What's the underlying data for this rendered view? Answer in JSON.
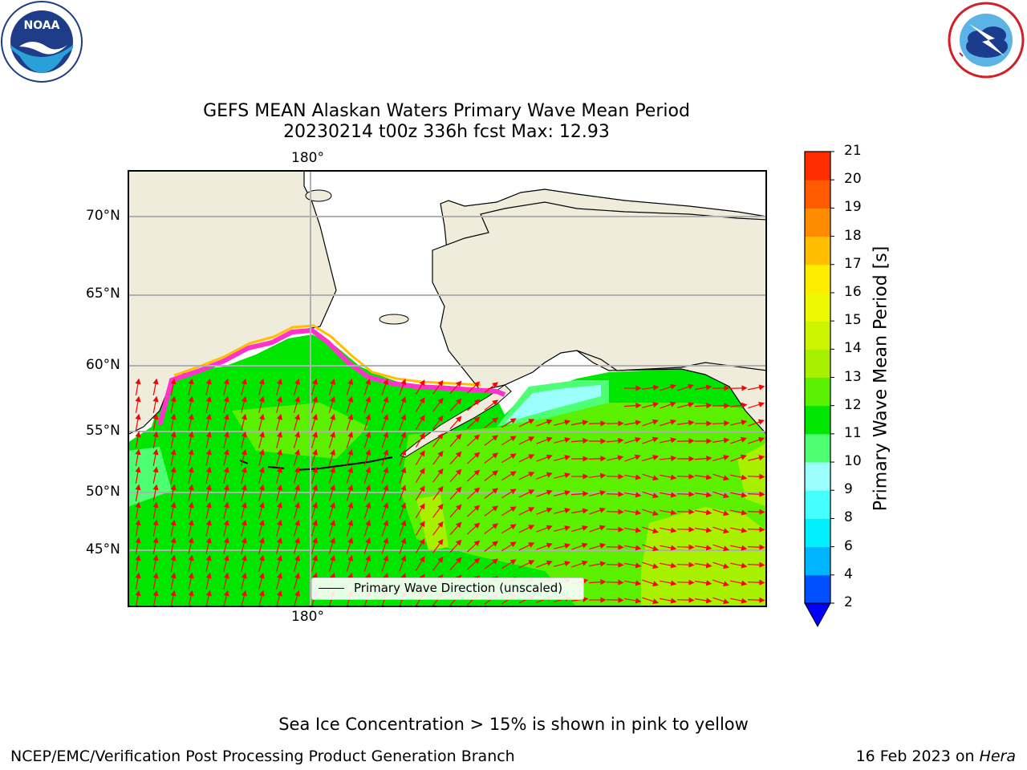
{
  "title": {
    "line1": "GEFS MEAN Alaskan Waters Primary Wave Mean Period",
    "line2": "20230214 t00z 336h fcst   Max: 12.93"
  },
  "logos": {
    "noaa_text": "NOAA",
    "noaa_ring": "NATIONAL OCEANIC AND ATMOSPHERIC ADMINISTRATION · U.S. DEPARTMENT OF COMMERCE",
    "nws_ring": "NATIONAL WEATHER SERVICE"
  },
  "map": {
    "lon_label_top": "180°",
    "lon_label_bottom": "180°",
    "lat_labels": [
      "70°N",
      "65°N",
      "60°N",
      "55°N",
      "50°N",
      "45°N"
    ],
    "legend_text": "Primary Wave Direction (unscaled)"
  },
  "colorbar": {
    "title": "Primary Wave Mean Period [s]",
    "levels": [
      "2",
      "4",
      "6",
      "8",
      "9",
      "10",
      "11",
      "12",
      "13",
      "14",
      "15",
      "16",
      "17",
      "18",
      "19",
      "20",
      "21"
    ],
    "colors": [
      "#0050ff",
      "#00b4ff",
      "#00f0ff",
      "#45ffff",
      "#9cffff",
      "#4dff73",
      "#00e600",
      "#5af000",
      "#a6f000",
      "#cdf500",
      "#edf900",
      "#ffed00",
      "#ffbf00",
      "#ff8c00",
      "#ff5a00",
      "#ff2d00"
    ],
    "under_color": "#0000ff"
  },
  "chart_data": {
    "type": "heatmap",
    "title": "GEFS MEAN Alaskan Waters Primary Wave Mean Period",
    "subtitle": "20230214 t00z 336h fcst   Max: 12.93",
    "variable": "Primary Wave Mean Period [s]",
    "max": 12.93,
    "lat_ticks": [
      "70°N",
      "65°N",
      "60°N",
      "55°N",
      "50°N",
      "45°N"
    ],
    "lon_ticks": [
      "180°"
    ],
    "colorbar_levels": [
      2,
      4,
      6,
      8,
      9,
      10,
      11,
      12,
      13,
      14,
      15,
      16,
      17,
      18,
      19,
      20,
      21
    ],
    "vector_layer": "Primary Wave Direction (unscaled)"
  },
  "footer": {
    "ice_note": "Sea Ice Concentration > 15% is shown in pink to yellow",
    "left": "NCEP/EMC/Verification Post Processing Product Generation Branch",
    "date": "16 Feb 2023 on ",
    "host": "Hera"
  }
}
